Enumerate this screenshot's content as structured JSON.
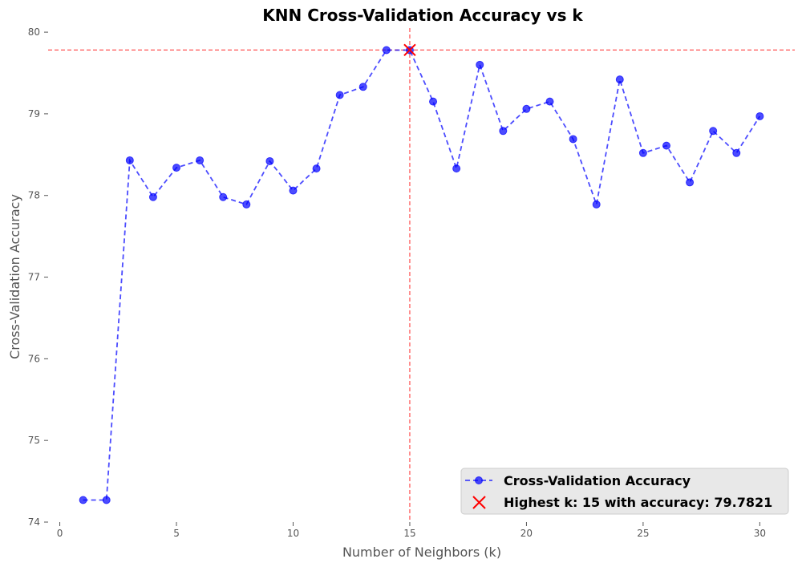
{
  "chart_data": {
    "type": "line",
    "title": "KNN Cross-Validation Accuracy vs k",
    "xlabel": "Number of Neighbors (k)",
    "ylabel": "Cross-Validation Accuracy",
    "xlim": [
      -0.5,
      31.5
    ],
    "ylim": [
      74,
      80.05
    ],
    "xticks": [
      0,
      5,
      10,
      15,
      20,
      25,
      30
    ],
    "yticks": [
      74,
      75,
      76,
      77,
      78,
      79,
      80
    ],
    "grid": false,
    "legend_position": "lower-right",
    "series": [
      {
        "name": "Cross-Validation Accuracy",
        "color": "#0000ff",
        "marker": "circle",
        "linestyle": "dashed",
        "x": [
          1,
          2,
          3,
          4,
          5,
          6,
          7,
          8,
          9,
          10,
          11,
          12,
          13,
          14,
          15,
          16,
          17,
          18,
          19,
          20,
          21,
          22,
          23,
          24,
          25,
          26,
          27,
          28,
          29,
          30
        ],
        "y": [
          74.27,
          74.27,
          78.43,
          77.98,
          78.34,
          78.43,
          77.98,
          77.89,
          78.42,
          78.06,
          78.33,
          79.23,
          79.33,
          79.78,
          79.78,
          79.15,
          78.33,
          79.6,
          78.79,
          79.06,
          79.15,
          78.69,
          77.89,
          79.42,
          78.52,
          78.61,
          78.16,
          78.79,
          78.52,
          78.97
        ]
      }
    ],
    "highlight": {
      "name": "Highest k: 15 with accuracy: 79.7821",
      "x": 15,
      "y": 79.7821,
      "color": "#ff0000",
      "marker": "x"
    },
    "reference_lines": {
      "vertical_x": 15,
      "horizontal_y": 79.7821,
      "color": "#ff0000"
    }
  }
}
